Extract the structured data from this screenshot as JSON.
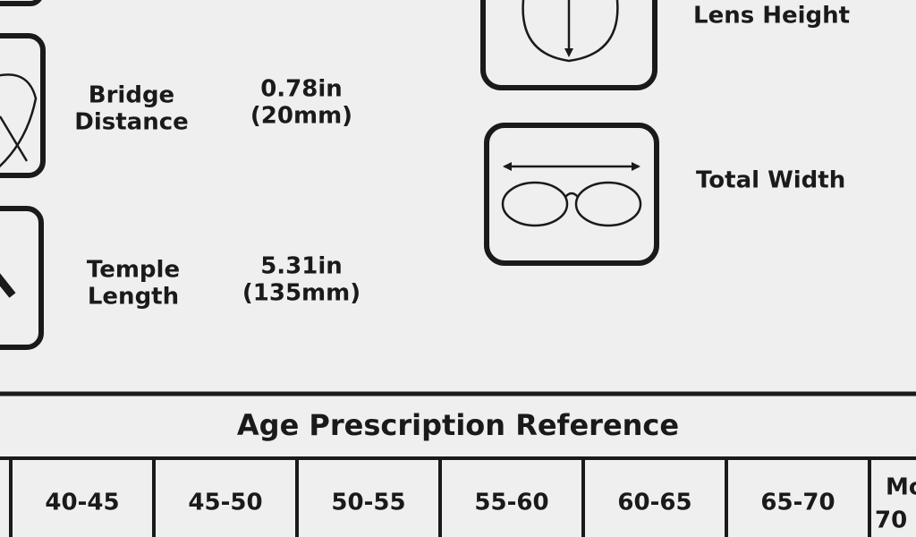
{
  "left_items": [
    {
      "label": [
        "Bridge",
        "Distance"
      ],
      "value": [
        "0.78in",
        "(20mm)"
      ]
    },
    {
      "label": [
        "Temple",
        "Length"
      ],
      "value": [
        "5.31in",
        "(135mm)"
      ]
    }
  ],
  "right_items": [
    "Lens Height",
    "Total Width"
  ],
  "table": {
    "title": "Age Prescription Reference",
    "header": [
      "40-45",
      "45-50",
      "50-55",
      "55-60",
      "60-65",
      "65-70"
    ],
    "cut_cell": [
      "Mo",
      "70"
    ]
  }
}
